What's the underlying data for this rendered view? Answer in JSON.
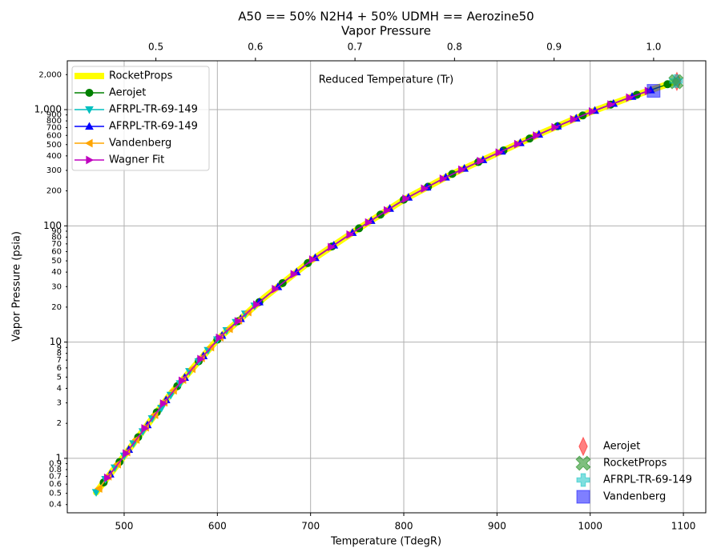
{
  "chart_data": {
    "type": "line",
    "title": "A50 == 50% N2H4 + 50% UDMH == Aerozine50",
    "subtitle": "Vapor Pressure",
    "annotation": "Reduced Temperature (Tr)",
    "x_label": "Temperature (TdegR)",
    "y_label": "Vapor Pressure (psia)",
    "xlim": [
      439,
      1124
    ],
    "xticks": [
      500,
      600,
      700,
      800,
      900,
      1000,
      1100
    ],
    "x2lim": [
      0.411,
      1.0524
    ],
    "x2ticks": [
      0.5,
      0.6,
      0.7,
      0.8,
      0.9,
      {
        "value": 1.0,
        "label": "1.0"
      }
    ],
    "ylim": [
      0.34,
      2630
    ],
    "y_scale": "log",
    "yticks": [
      1,
      10,
      100,
      {
        "value": 1000,
        "label": "1,000"
      }
    ],
    "yminor_ticks": [
      0.4,
      0.5,
      0.6,
      0.7,
      0.8,
      0.9,
      2,
      3,
      4,
      5,
      6,
      7,
      8,
      9,
      20,
      30,
      40,
      50,
      60,
      70,
      80,
      90,
      200,
      300,
      400,
      500,
      600,
      700,
      800,
      900,
      {
        "value": 2000,
        "label": "2,000"
      }
    ],
    "grid": true,
    "legend": "upper left",
    "critical_legend": "lower right",
    "series": [
      {
        "name": "RocketProps",
        "color": "#ffff00",
        "marker": null,
        "linewidth": 8,
        "x": [
          470,
          500,
          550,
          600,
          650,
          700,
          750,
          800,
          850,
          900,
          950,
          1000,
          1050,
          1092
        ],
        "values": [
          0.51,
          1.05,
          3.6,
          10.5,
          24,
          50,
          93,
          168,
          275,
          420,
          640,
          950,
          1340,
          1750
        ]
      },
      {
        "name": "Aerojet",
        "color": "#008000",
        "marker": "circle",
        "linewidth": 1.5,
        "x": [
          478,
          495,
          515,
          535,
          557,
          580,
          600,
          622,
          645,
          670,
          697,
          723,
          752,
          775,
          800,
          826,
          852,
          880,
          907,
          935,
          965,
          992,
          1022,
          1050,
          1083
        ],
        "values": [
          0.62,
          0.93,
          1.52,
          2.49,
          4.18,
          6.84,
          10.5,
          15.1,
          22.1,
          32.2,
          47.8,
          66.5,
          95.2,
          125,
          168,
          217,
          280,
          354,
          446,
          564,
          720,
          891,
          1105,
          1340,
          1653
        ]
      },
      {
        "name": "AFRPL-TR-69-149",
        "color": "#00bfbf",
        "marker": "triangle-down",
        "linewidth": 1.5,
        "x": [
          470,
          480,
          490,
          500,
          510,
          520,
          530,
          540,
          550,
          560,
          570,
          580,
          590,
          600,
          610,
          620,
          630,
          640
        ],
        "values": [
          0.51,
          0.66,
          0.83,
          1.05,
          1.34,
          1.7,
          2.2,
          2.7,
          3.5,
          4.4,
          5.6,
          6.8,
          8.5,
          10.5,
          12.6,
          14.8,
          17.5,
          20.5
        ]
      },
      {
        "name": "AFRPL-TR-69-149",
        "color": "#0000ff",
        "marker": "triangle-up",
        "linewidth": 1.5,
        "x": [
          485,
          505,
          525,
          545,
          565,
          585,
          605,
          625,
          645,
          665,
          685,
          705,
          725,
          745,
          765,
          785,
          805,
          825,
          845,
          865,
          885,
          905,
          925,
          945,
          965,
          985,
          1005,
          1025,
          1045,
          1065
        ],
        "values": [
          0.73,
          1.19,
          1.94,
          3.18,
          4.96,
          7.61,
          11.4,
          15.9,
          22.1,
          29.9,
          40.1,
          53.2,
          68.2,
          87.4,
          111,
          141,
          176,
          215,
          262,
          312,
          370,
          438,
          518,
          613,
          721,
          844,
          983,
          1128,
          1295,
          1474
        ]
      },
      {
        "name": "Vandenberg",
        "color": "#ffa500",
        "marker": "triangle-left",
        "linewidth": 1.5,
        "x": [
          473,
          483,
          493,
          503,
          513,
          523,
          533,
          543,
          553,
          563,
          573,
          583,
          593,
          603,
          613,
          623,
          633
        ],
        "values": [
          0.55,
          0.7,
          0.89,
          1.13,
          1.45,
          1.85,
          2.37,
          3.03,
          3.84,
          4.75,
          5.89,
          7.29,
          9.04,
          11.0,
          13.0,
          15.4,
          18.1
        ]
      },
      {
        "name": "Wagner Fit",
        "color": "#bf00bf",
        "marker": "triangle-right",
        "linewidth": 1.5,
        "x": [
          482,
          502,
          522,
          542,
          562,
          582,
          602,
          622,
          642,
          662,
          682,
          702,
          722,
          742,
          762,
          782,
          802,
          822,
          842,
          862,
          882,
          902,
          922,
          942,
          962,
          982,
          1002,
          1022,
          1042,
          1062
        ],
        "values": [
          0.68,
          1.1,
          1.81,
          2.96,
          4.65,
          7.14,
          10.9,
          15.1,
          21.0,
          28.6,
          38.4,
          51.3,
          65.7,
          84.1,
          107,
          136,
          171,
          209,
          254,
          304,
          361,
          427,
          505,
          598,
          704,
          824,
          963,
          1105,
          1268,
          1446
        ]
      }
    ],
    "critical_points": [
      {
        "name": "Aerojet",
        "color": "#ff0000",
        "marker": "diamond",
        "x": 1093,
        "value": 1750
      },
      {
        "name": "RocketProps",
        "color": "#008000",
        "marker": "x",
        "x": 1092,
        "value": 1740
      },
      {
        "name": "AFRPL-TR-69-149",
        "color": "#00bfbf",
        "marker": "plus",
        "x": 1092,
        "value": 1760
      },
      {
        "name": "Vandenberg",
        "color": "#0000ff",
        "marker": "square",
        "x": 1068,
        "value": 1450
      }
    ]
  }
}
